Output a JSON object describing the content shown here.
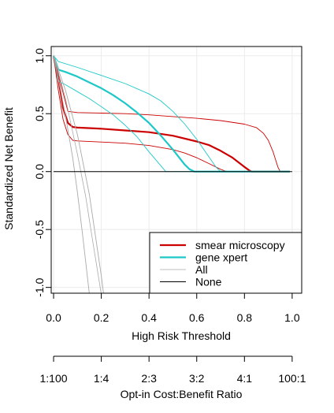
{
  "chart_data": {
    "type": "line",
    "title": "",
    "xlabel": "High Risk Threshold",
    "ylabel": "Standardized Net Benefit",
    "xlim": [
      0,
      1
    ],
    "ylim": [
      -1,
      1
    ],
    "grid": true,
    "legend_position": "bottom-right",
    "xticks": [
      0.0,
      0.2,
      0.4,
      0.6,
      0.8,
      1.0
    ],
    "xtick_labels": [
      "0.0",
      "0.2",
      "0.4",
      "0.6",
      "0.8",
      "1.0"
    ],
    "yticks": [
      -1.0,
      -0.5,
      0.0,
      0.5,
      1.0
    ],
    "ytick_labels": [
      "-1.0",
      "-0.5",
      "0.0",
      "0.5",
      "1.0"
    ],
    "ratio_axis": {
      "label": "Opt-in Cost:Benefit Ratio",
      "ticks": [
        0.0,
        0.2,
        0.4,
        0.6,
        0.8,
        1.0
      ],
      "tick_labels": [
        "1:100",
        "1:4",
        "2:3",
        "3:2",
        "4:1",
        "100:1"
      ]
    },
    "series": [
      {
        "name": "smear microscopy",
        "color": "#cc0000",
        "style": "solid",
        "width": 2.2,
        "x": [
          0,
          0.02,
          0.04,
          0.06,
          0.08,
          0.1,
          0.2,
          0.3,
          0.4,
          0.5,
          0.6,
          0.65,
          0.7,
          0.75,
          0.8,
          0.82,
          0.83,
          0.99
        ],
        "y": [
          1.0,
          0.8,
          0.55,
          0.42,
          0.385,
          0.38,
          0.37,
          0.355,
          0.34,
          0.31,
          0.26,
          0.23,
          0.18,
          0.12,
          0.04,
          0.01,
          0.0,
          0.0
        ],
        "ci": [
          {
            "x": [
              0,
              0.02,
              0.04,
              0.06,
              0.1,
              0.2,
              0.3,
              0.4,
              0.5,
              0.6,
              0.7,
              0.8,
              0.85,
              0.88,
              0.9,
              0.92,
              0.94,
              0.95,
              0.99
            ],
            "y": [
              1.0,
              0.85,
              0.68,
              0.52,
              0.51,
              0.505,
              0.5,
              0.49,
              0.475,
              0.46,
              0.44,
              0.41,
              0.38,
              0.33,
              0.27,
              0.17,
              0.04,
              0.0,
              0.0
            ]
          },
          {
            "x": [
              0,
              0.02,
              0.04,
              0.06,
              0.08,
              0.1,
              0.2,
              0.3,
              0.4,
              0.5,
              0.55,
              0.6,
              0.65,
              0.7,
              0.72,
              0.73,
              0.99
            ],
            "y": [
              1.0,
              0.7,
              0.45,
              0.32,
              0.27,
              0.265,
              0.255,
              0.245,
              0.225,
              0.19,
              0.16,
              0.12,
              0.07,
              0.02,
              0.005,
              0.0,
              0.0
            ]
          }
        ]
      },
      {
        "name": "gene xpert",
        "color": "#1ec8c8",
        "style": "solid",
        "width": 2.2,
        "x": [
          0,
          0.02,
          0.05,
          0.1,
          0.15,
          0.2,
          0.25,
          0.3,
          0.35,
          0.4,
          0.45,
          0.5,
          0.55,
          0.57,
          0.59,
          0.99
        ],
        "y": [
          1.0,
          0.88,
          0.86,
          0.82,
          0.77,
          0.72,
          0.66,
          0.59,
          0.51,
          0.42,
          0.31,
          0.19,
          0.06,
          0.02,
          0.0,
          0.0
        ],
        "ci": [
          {
            "x": [
              0,
              0.02,
              0.1,
              0.2,
              0.3,
              0.4,
              0.45,
              0.5,
              0.55,
              0.6,
              0.65,
              0.68,
              0.7,
              0.99
            ],
            "y": [
              1.0,
              0.95,
              0.9,
              0.83,
              0.76,
              0.67,
              0.61,
              0.52,
              0.41,
              0.28,
              0.13,
              0.04,
              0.0,
              0.0
            ]
          },
          {
            "x": [
              0,
              0.02,
              0.05,
              0.1,
              0.15,
              0.2,
              0.25,
              0.3,
              0.35,
              0.4,
              0.45,
              0.47,
              0.99
            ],
            "y": [
              1.0,
              0.78,
              0.75,
              0.69,
              0.63,
              0.56,
              0.49,
              0.4,
              0.3,
              0.17,
              0.05,
              0.0,
              0.0
            ]
          }
        ]
      },
      {
        "name": "All",
        "color": "#aaaaaa",
        "style": "solid",
        "width": 0.8,
        "x": [
          0,
          0.01,
          0.05,
          0.1,
          0.135,
          0.16,
          0.2
        ],
        "y": [
          1.0,
          0.93,
          0.63,
          0.15,
          -0.22,
          -0.55,
          -1.06
        ],
        "ci": [
          {
            "x": [
              0,
              0.02,
              0.05,
              0.1,
              0.15,
              0.2,
              0.21
            ],
            "y": [
              1.0,
              0.88,
              0.7,
              0.32,
              -0.2,
              -0.9,
              -1.06
            ]
          },
          {
            "x": [
              0,
              0.02,
              0.05,
              0.08,
              0.1,
              0.12,
              0.15
            ],
            "y": [
              1.0,
              0.8,
              0.48,
              0.12,
              -0.18,
              -0.52,
              -1.06
            ]
          }
        ]
      },
      {
        "name": "None",
        "color": "#000000",
        "style": "solid",
        "width": 1,
        "x": [
          0,
          1
        ],
        "y": [
          0,
          0
        ]
      }
    ]
  }
}
